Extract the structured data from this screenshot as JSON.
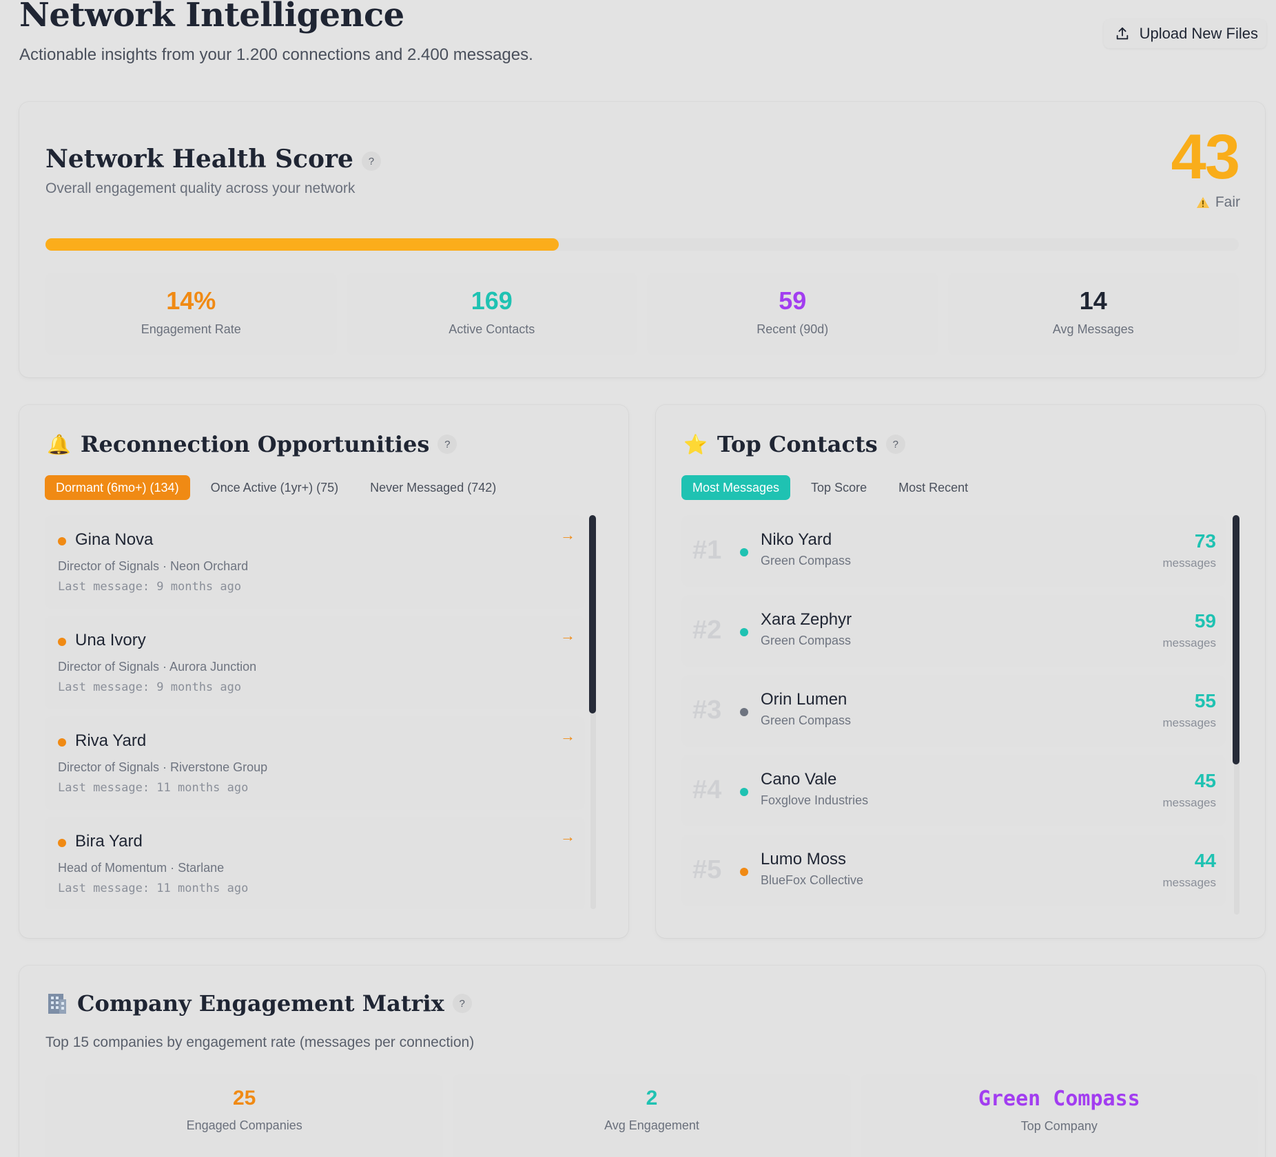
{
  "header": {
    "title": "Network Intelligence",
    "subtitle": "Actionable insights from your 1.200 connections and 2.400 messages.",
    "upload_label": "Upload New Files"
  },
  "health": {
    "title": "Network Health Score",
    "help": "?",
    "subtitle": "Overall engagement quality across your network",
    "score": "43",
    "status": "Fair",
    "progress_percent": 43,
    "stats": [
      {
        "value": "14%",
        "label": "Engagement Rate",
        "color": "#f08a14"
      },
      {
        "value": "169",
        "label": "Active Contacts",
        "color": "#1fc2b2"
      },
      {
        "value": "59",
        "label": "Recent (90d)",
        "color": "#a23df0"
      },
      {
        "value": "14",
        "label": "Avg Messages",
        "color": "#1f2533"
      }
    ]
  },
  "reconnect": {
    "emoji": "🔔",
    "title": "Reconnection Opportunities",
    "help": "?",
    "tabs": [
      {
        "label": "Dormant (6mo+) (134)",
        "active": true
      },
      {
        "label": "Once Active (1yr+) (75)",
        "active": false
      },
      {
        "label": "Never Messaged (742)",
        "active": false
      }
    ],
    "items": [
      {
        "name": "Gina Nova",
        "role": "Director of Signals · Neon Orchard",
        "last": "Last message: 9 months ago"
      },
      {
        "name": "Una Ivory",
        "role": "Director of Signals · Aurora Junction",
        "last": "Last message: 9 months ago"
      },
      {
        "name": "Riva Yard",
        "role": "Director of Signals · Riverstone Group",
        "last": "Last message: 11 months ago"
      },
      {
        "name": "Bira Yard",
        "role": "Head of Momentum · Starlane",
        "last": "Last message: 11 months ago"
      }
    ],
    "arrow": "→"
  },
  "top_contacts": {
    "emoji": "⭐",
    "title": "Top Contacts",
    "help": "?",
    "tabs": [
      {
        "label": "Most Messages",
        "active": true
      },
      {
        "label": "Top Score",
        "active": false
      },
      {
        "label": "Most Recent",
        "active": false
      }
    ],
    "items": [
      {
        "rank": "#1",
        "name": "Niko Yard",
        "company": "Green Compass",
        "count": "73",
        "unit": "messages",
        "dot_color": "#1fc2b2"
      },
      {
        "rank": "#2",
        "name": "Xara Zephyr",
        "company": "Green Compass",
        "count": "59",
        "unit": "messages",
        "dot_color": "#1fc2b2"
      },
      {
        "rank": "#3",
        "name": "Orin Lumen",
        "company": "Green Compass",
        "count": "55",
        "unit": "messages",
        "dot_color": "#6e7480"
      },
      {
        "rank": "#4",
        "name": "Cano Vale",
        "company": "Foxglove Industries",
        "count": "45",
        "unit": "messages",
        "dot_color": "#1fc2b2"
      },
      {
        "rank": "#5",
        "name": "Lumo Moss",
        "company": "BlueFox Collective",
        "count": "44",
        "unit": "messages",
        "dot_color": "#f08a14"
      }
    ]
  },
  "matrix": {
    "title": "Company Engagement Matrix",
    "help": "?",
    "subtitle": "Top 15 companies by engagement rate (messages per connection)",
    "stats": [
      {
        "value": "25",
        "label": "Engaged Companies",
        "color": "#f08a14"
      },
      {
        "value": "2",
        "label": "Avg Engagement",
        "color": "#1fc2b2"
      },
      {
        "value": "Green Compass",
        "label": "Top Company",
        "color": "#a23df0"
      }
    ]
  }
}
